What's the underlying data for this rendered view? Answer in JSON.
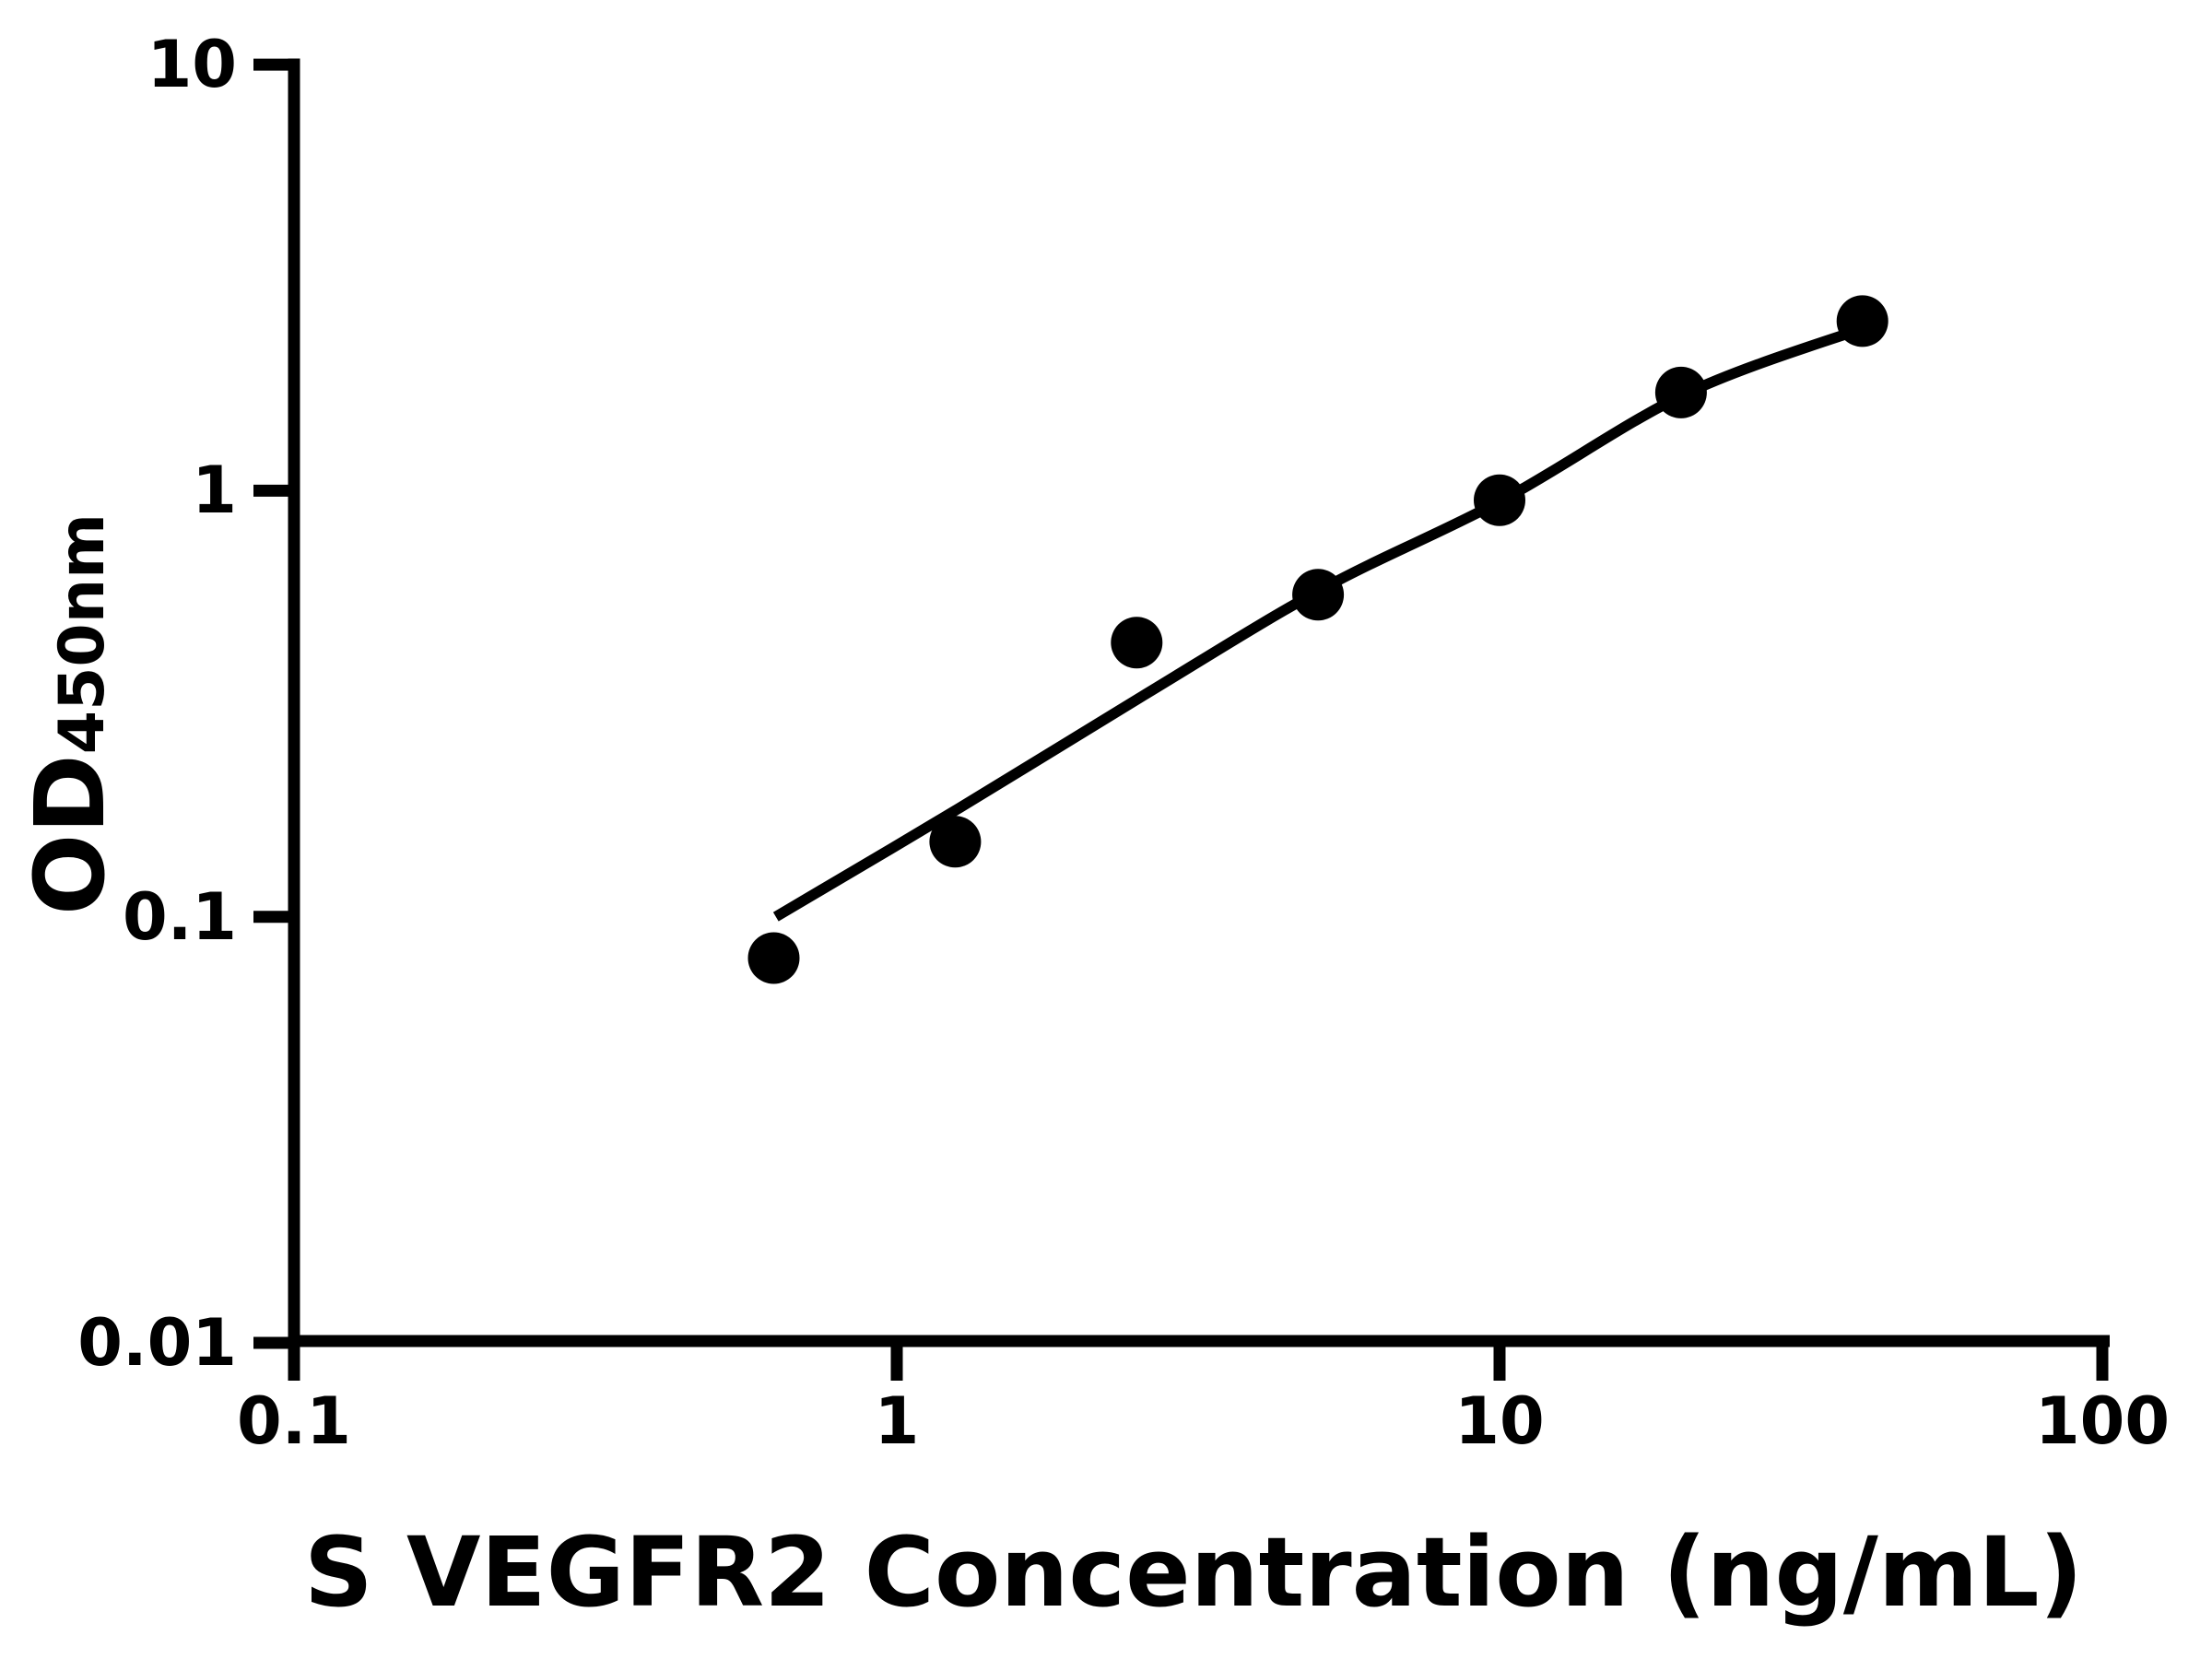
{
  "figure": {
    "background_color": "#ffffff",
    "ink_color": "#000000"
  },
  "chart_data": {
    "type": "scatter",
    "title": "",
    "xlabel": "S VEGFR2 Concentration (ng/mL)",
    "ylabel_main": "OD",
    "ylabel_subscript": "450nm",
    "x_scale": "log",
    "y_scale": "log",
    "xlim": [
      0.1,
      100
    ],
    "ylim": [
      0.01,
      10
    ],
    "grid": false,
    "legend": "none",
    "x_ticks": [
      {
        "value": 0.1,
        "label": "0.1"
      },
      {
        "value": 1,
        "label": "1"
      },
      {
        "value": 10,
        "label": "10"
      },
      {
        "value": 100,
        "label": "100"
      }
    ],
    "y_ticks": [
      {
        "value": 10,
        "label": "10"
      },
      {
        "value": 1,
        "label": "1"
      },
      {
        "value": 0.1,
        "label": "0.1"
      },
      {
        "value": 0.01,
        "label": "0.01"
      }
    ],
    "series": [
      {
        "name": "standard-points",
        "marker": "filled-circle",
        "color": "#000000",
        "points": [
          {
            "x": 0.625,
            "y": 0.08
          },
          {
            "x": 1.25,
            "y": 0.15
          },
          {
            "x": 2.5,
            "y": 0.44
          },
          {
            "x": 5,
            "y": 0.57
          },
          {
            "x": 10,
            "y": 0.95
          },
          {
            "x": 20,
            "y": 1.7
          },
          {
            "x": 40,
            "y": 2.5
          }
        ]
      }
    ],
    "fit_curve": {
      "name": "standard-curve-fit",
      "color": "#000000",
      "points": [
        {
          "x": 0.63,
          "y": 0.1
        },
        {
          "x": 1.27,
          "y": 0.18
        },
        {
          "x": 2.56,
          "y": 0.33
        },
        {
          "x": 5.1,
          "y": 0.59
        },
        {
          "x": 10.1,
          "y": 0.95
        },
        {
          "x": 20.4,
          "y": 1.69
        },
        {
          "x": 40.6,
          "y": 2.42
        }
      ]
    }
  }
}
